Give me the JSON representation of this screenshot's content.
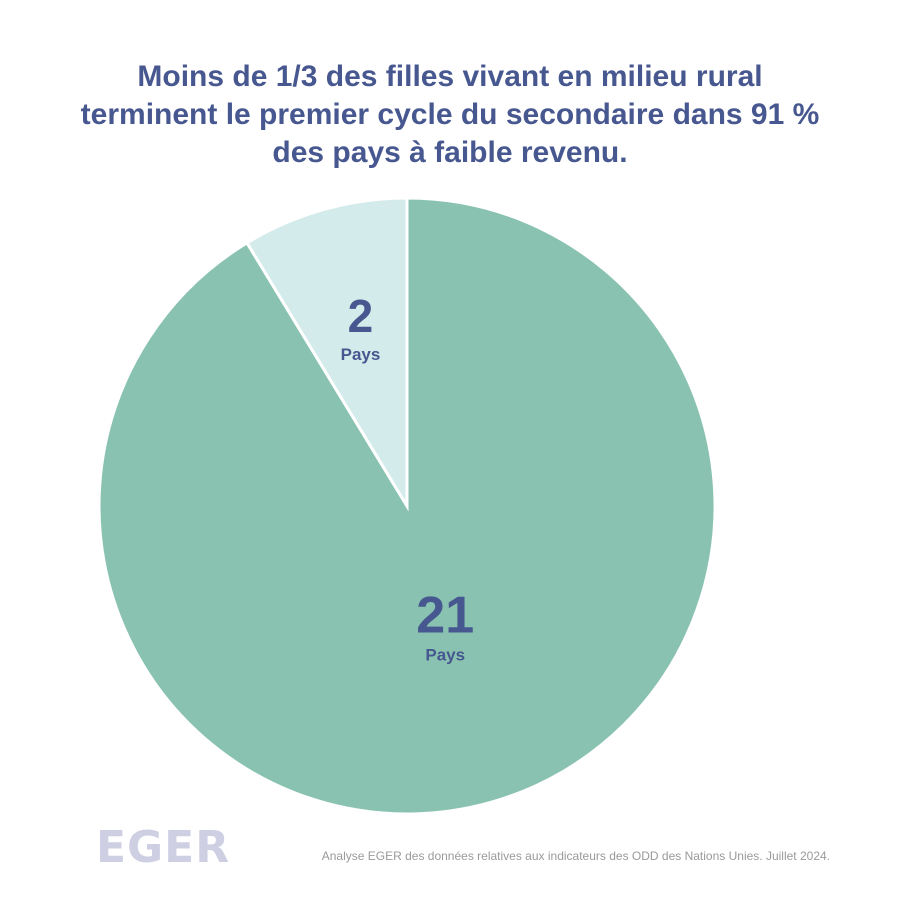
{
  "chart_data": {
    "type": "pie",
    "title_lines": [
      "Moins de 1/3 des filles vivant en milieu rural",
      "terminent le premier cycle du secondaire dans 91 %",
      "des pays à faible revenu."
    ],
    "slices": [
      {
        "value": 21,
        "label": "21",
        "unit": "Pays",
        "color": "#89c2b1"
      },
      {
        "value": 2,
        "label": "2",
        "unit": "Pays",
        "color": "#d4ebeb"
      }
    ],
    "start": "12 o'clock",
    "direction": "clockwise"
  },
  "logo_text": "EGER",
  "source": "Analyse EGER des données relatives aux indicateurs des ODD des Nations Unies. Juillet 2024."
}
